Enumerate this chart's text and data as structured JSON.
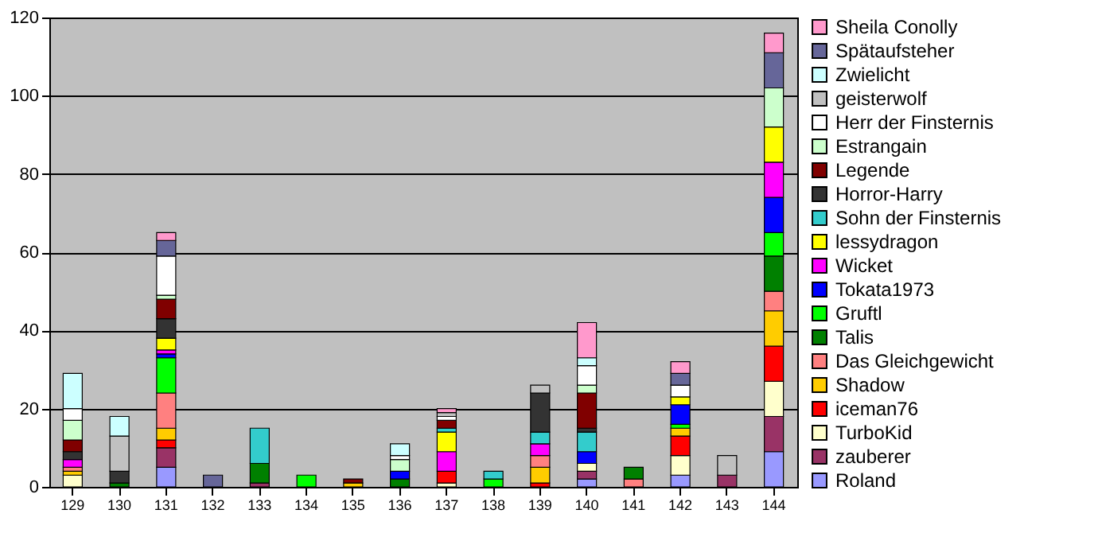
{
  "chart_data": {
    "type": "bar",
    "stacked": true,
    "categories": [
      "129",
      "130",
      "131",
      "132",
      "133",
      "134",
      "135",
      "136",
      "137",
      "138",
      "139",
      "140",
      "141",
      "142",
      "143",
      "144"
    ],
    "ylim": [
      0,
      120
    ],
    "yticks": [
      0,
      20,
      40,
      60,
      80,
      100,
      120
    ],
    "grid": "y",
    "legend": "right",
    "series": [
      {
        "name": "Roland",
        "color": "#9999ff",
        "values": [
          null,
          null,
          5,
          null,
          null,
          null,
          null,
          null,
          null,
          null,
          null,
          2,
          null,
          3,
          null,
          9
        ]
      },
      {
        "name": "zauberer",
        "color": "#993366",
        "values": [
          null,
          null,
          5,
          null,
          1,
          null,
          null,
          null,
          null,
          null,
          null,
          2,
          null,
          null,
          3,
          9
        ]
      },
      {
        "name": "TurboKid",
        "color": "#ffffcc",
        "values": [
          3,
          null,
          null,
          null,
          null,
          null,
          null,
          null,
          1,
          null,
          null,
          2,
          null,
          5,
          null,
          9
        ]
      },
      {
        "name": "iceman76",
        "color": "#ff0000",
        "values": [
          null,
          null,
          2,
          null,
          null,
          null,
          null,
          null,
          3,
          null,
          1,
          null,
          null,
          5,
          null,
          9
        ]
      },
      {
        "name": "Shadow",
        "color": "#ffcc00",
        "values": [
          1,
          null,
          3,
          null,
          null,
          null,
          1,
          null,
          null,
          null,
          4,
          null,
          null,
          2,
          null,
          9
        ]
      },
      {
        "name": "Das Gleichgewicht",
        "color": "#ff8080",
        "values": [
          1,
          null,
          9,
          null,
          null,
          null,
          null,
          null,
          null,
          null,
          3,
          null,
          2,
          null,
          null,
          5
        ]
      },
      {
        "name": "Talis",
        "color": "#008000",
        "values": [
          null,
          1,
          null,
          null,
          5,
          null,
          null,
          2,
          null,
          null,
          null,
          null,
          3,
          null,
          null,
          9
        ]
      },
      {
        "name": "Gruftl",
        "color": "#00ff00",
        "values": [
          null,
          null,
          9,
          null,
          null,
          3,
          null,
          null,
          null,
          2,
          null,
          null,
          null,
          1,
          null,
          6
        ]
      },
      {
        "name": "Tokata1973",
        "color": "#0000ff",
        "values": [
          null,
          null,
          1,
          null,
          null,
          null,
          null,
          2,
          null,
          null,
          null,
          3,
          null,
          5,
          null,
          9
        ]
      },
      {
        "name": "Wicket",
        "color": "#ff00ff",
        "values": [
          2,
          null,
          1,
          null,
          null,
          null,
          null,
          null,
          5,
          null,
          3,
          null,
          null,
          null,
          null,
          9
        ]
      },
      {
        "name": "lessydragon",
        "color": "#ffff00",
        "values": [
          null,
          null,
          3,
          null,
          null,
          null,
          null,
          null,
          5,
          null,
          null,
          null,
          null,
          2,
          null,
          9
        ]
      },
      {
        "name": "Sohn der Finsternis",
        "color": "#33cccc",
        "values": [
          null,
          null,
          null,
          null,
          9,
          null,
          null,
          null,
          1,
          2,
          3,
          5,
          null,
          null,
          null,
          null
        ]
      },
      {
        "name": "Horror-Harry",
        "color": "#333333",
        "values": [
          2,
          3,
          5,
          null,
          null,
          null,
          null,
          null,
          null,
          null,
          10,
          1,
          null,
          null,
          null,
          null
        ]
      },
      {
        "name": "Legende",
        "color": "#800000",
        "values": [
          3,
          null,
          5,
          null,
          null,
          null,
          1,
          null,
          2,
          null,
          null,
          9,
          null,
          null,
          null,
          null
        ]
      },
      {
        "name": "Estrangain",
        "color": "#ccffcc",
        "values": [
          5,
          null,
          1,
          null,
          null,
          null,
          null,
          3,
          null,
          null,
          null,
          2,
          null,
          null,
          null,
          10
        ]
      },
      {
        "name": "Herr der Finsternis",
        "color": "#ffffff",
        "values": [
          3,
          null,
          10,
          null,
          null,
          null,
          null,
          1,
          1,
          null,
          null,
          5,
          null,
          3,
          null,
          null
        ]
      },
      {
        "name": "geisterwolf",
        "color": "#c0c0c0",
        "values": [
          null,
          9,
          null,
          null,
          null,
          null,
          null,
          null,
          1,
          null,
          2,
          null,
          null,
          null,
          5,
          null
        ]
      },
      {
        "name": "Zwielicht",
        "color": "#ccffff",
        "values": [
          9,
          5,
          null,
          null,
          null,
          null,
          null,
          3,
          null,
          null,
          null,
          2,
          null,
          null,
          null,
          null
        ]
      },
      {
        "name": "Spätaufsteher",
        "color": "#666699",
        "values": [
          null,
          null,
          4,
          3,
          null,
          null,
          null,
          null,
          null,
          null,
          null,
          null,
          null,
          3,
          null,
          9
        ]
      },
      {
        "name": "Sheila Conolly",
        "color": "#ff99cc",
        "values": [
          null,
          null,
          2,
          null,
          null,
          null,
          null,
          null,
          1,
          null,
          null,
          9,
          null,
          3,
          null,
          5
        ]
      }
    ]
  }
}
